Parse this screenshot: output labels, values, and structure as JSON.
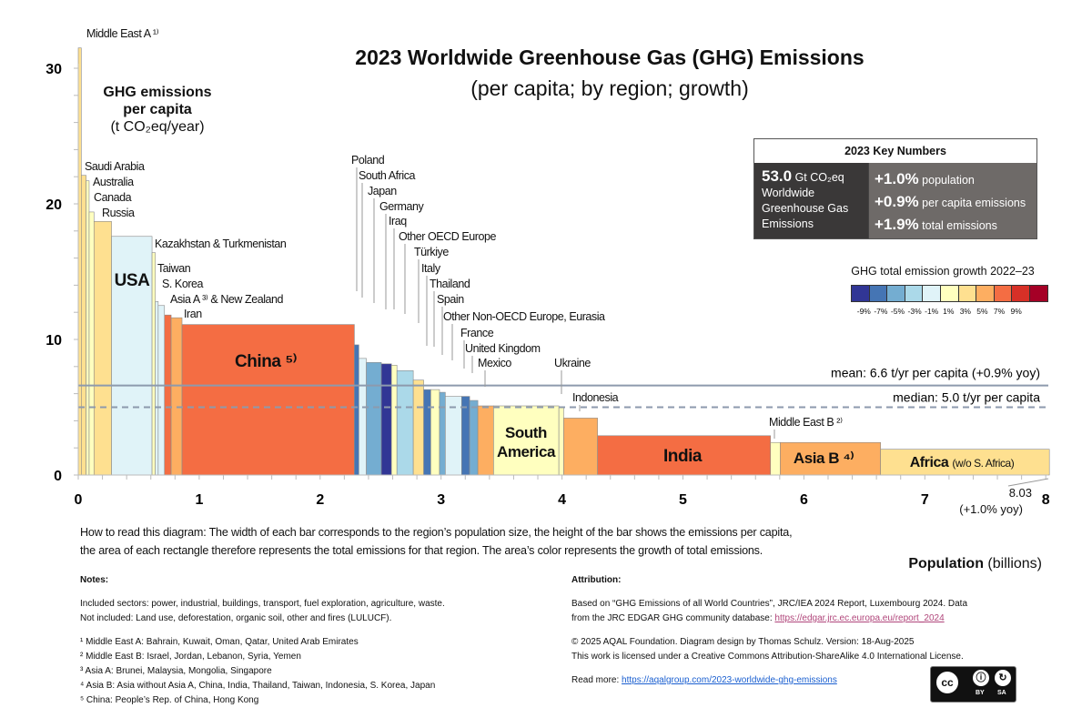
{
  "header": {
    "title": "2023 Worldwide Greenhouse Gas (GHG) Emissions",
    "subtitle": "(per capita; by region; growth)"
  },
  "key_numbers": {
    "title": "2023 Key Numbers",
    "total_value": "53.0",
    "total_unit": "Gt CO₂eq",
    "total_desc": "Worldwide Greenhouse Gas Emissions",
    "items": [
      {
        "value": "+1.0%",
        "label": "population"
      },
      {
        "value": "+0.9%",
        "label": "per capita emissions"
      },
      {
        "value": "+1.9%",
        "label": "total emissions"
      }
    ]
  },
  "legend": {
    "title": "GHG total emission growth 2022–23",
    "colors": [
      "#313695",
      "#4575b4",
      "#74add1",
      "#abd9e9",
      "#e0f3f8",
      "#ffffbf",
      "#fee090",
      "#fdae61",
      "#f46d43",
      "#d73027",
      "#a50026"
    ],
    "ticks": [
      "-9%",
      "-7%",
      "-5%",
      "-3%",
      "-1%",
      "1%",
      "3%",
      "5%",
      "7%",
      "9%"
    ]
  },
  "chart_data": {
    "type": "bar",
    "variant": "variable-width (Marimekko)",
    "title": "2023 Worldwide Greenhouse Gas (GHG) Emissions",
    "ylabel_lines": [
      "GHG emissions",
      "per capita",
      "(t CO₂eq/year)"
    ],
    "xlabel_bold": "Population",
    "xlabel_unit": "(billions)",
    "xlim": [
      0,
      8
    ],
    "ylim": [
      0,
      30
    ],
    "x_ticks": [
      "0",
      "1",
      "2",
      "3",
      "4",
      "5",
      "6",
      "7",
      "8"
    ],
    "y_ticks": [
      "0",
      "10",
      "20",
      "30"
    ],
    "total_population": "8.03",
    "population_growth": "(+1.0% yoy)",
    "mean": {
      "value": 6.6,
      "label": "mean: 6.6 t/yr per capita (+0.9% yoy)"
    },
    "median": {
      "value": 5.0,
      "label": "median: 5.0 t/yr per capita"
    },
    "bars": [
      {
        "label": "Middle East A ¹⁾",
        "population": 0.025,
        "per_capita": 31.5,
        "color": "#fee090"
      },
      {
        "label": "Saudi Arabia",
        "population": 0.04,
        "per_capita": 22.1,
        "color": "#fee090"
      },
      {
        "label": "Australia",
        "population": 0.025,
        "per_capita": 21.7,
        "color": "#ffffbf"
      },
      {
        "label": "Canada",
        "population": 0.04,
        "per_capita": 19.4,
        "color": "#ffffbf"
      },
      {
        "label": "Russia",
        "population": 0.145,
        "per_capita": 18.7,
        "color": "#fee090"
      },
      {
        "label": "USA",
        "population": 0.335,
        "per_capita": 17.6,
        "color": "#e0f3f8"
      },
      {
        "label": "Kazakhstan & Turkmenistan",
        "population": 0.027,
        "per_capita": 16.4,
        "color": "#ffffbf"
      },
      {
        "label": "Taiwan",
        "population": 0.024,
        "per_capita": 12.8,
        "color": "#e0f3f8"
      },
      {
        "label": "S. Korea",
        "population": 0.052,
        "per_capita": 12.5,
        "color": "#e0f3f8"
      },
      {
        "label": "Asia A ³⁾ & New Zealand",
        "population": 0.055,
        "per_capita": 11.8,
        "color": "#f46d43"
      },
      {
        "label": "Iran",
        "population": 0.09,
        "per_capita": 11.6,
        "color": "#fdae61"
      },
      {
        "label": "China ⁵⁾",
        "population": 1.425,
        "per_capita": 11.1,
        "color": "#f46d43"
      },
      {
        "label": "Poland",
        "population": 0.037,
        "per_capita": 9.6,
        "color": "#4575b4"
      },
      {
        "label": "South Africa",
        "population": 0.062,
        "per_capita": 8.6,
        "color": "#e0f3f8"
      },
      {
        "label": "Japan",
        "population": 0.124,
        "per_capita": 8.3,
        "color": "#74add1"
      },
      {
        "label": "Germany",
        "population": 0.084,
        "per_capita": 8.2,
        "color": "#313695"
      },
      {
        "label": "Iraq",
        "population": 0.045,
        "per_capita": 8.1,
        "color": "#ffffbf"
      },
      {
        "label": "Other OECD Europe",
        "population": 0.135,
        "per_capita": 7.7,
        "color": "#abd9e9"
      },
      {
        "label": "Türkiye",
        "population": 0.086,
        "per_capita": 7.0,
        "color": "#fee090"
      },
      {
        "label": "Italy",
        "population": 0.059,
        "per_capita": 6.3,
        "color": "#4575b4"
      },
      {
        "label": "Thailand",
        "population": 0.072,
        "per_capita": 6.3,
        "color": "#ffffbf"
      },
      {
        "label": "Spain",
        "population": 0.048,
        "per_capita": 6.1,
        "color": "#74add1"
      },
      {
        "label": "Other Non-OECD Europe, Eurasia",
        "population": 0.135,
        "per_capita": 5.8,
        "color": "#e0f3f8"
      },
      {
        "label": "France",
        "population": 0.066,
        "per_capita": 5.8,
        "color": "#4575b4"
      },
      {
        "label": "United Kingdom",
        "population": 0.068,
        "per_capita": 5.5,
        "color": "#74add1"
      },
      {
        "label": "Mexico",
        "population": 0.13,
        "per_capita": 5.1,
        "color": "#fdae61"
      },
      {
        "label": "South America",
        "population": 0.54,
        "per_capita": 5.1,
        "color": "#ffffbf"
      },
      {
        "label": "Ukraine",
        "population": 0.04,
        "per_capita": 5.0,
        "color": "#ffffbf"
      },
      {
        "label": "Indonesia",
        "population": 0.28,
        "per_capita": 4.2,
        "color": "#fdae61"
      },
      {
        "label": "India",
        "population": 1.43,
        "per_capita": 2.9,
        "color": "#f46d43"
      },
      {
        "label": "Middle East B ²⁾",
        "population": 0.08,
        "per_capita": 2.4,
        "color": "#ffffbf"
      },
      {
        "label": "Asia B ⁴⁾",
        "population": 0.83,
        "per_capita": 2.4,
        "color": "#fdae61"
      },
      {
        "label": "Africa",
        "label_note": "(w/o S. Africa)",
        "population": 1.396,
        "per_capita": 1.9,
        "color": "#fee090"
      }
    ]
  },
  "how_to_read": [
    "How to read this diagram: The width of each bar corresponds to the region’s population size, the height of the bar shows the emissions per capita,",
    "the area of each rectangle therefore represents the total emissions for that region. The area’s color represents the growth of total emissions."
  ],
  "notes": {
    "title": "Notes:",
    "included": "Included sectors: power, industrial, buildings, transport, fuel exploration, agriculture, waste.",
    "not_included": "Not included: Land use, deforestation, organic soil, other and fires (LULUCF).",
    "footnotes": [
      "¹ Middle East A: Bahrain, Kuwait, Oman, Qatar, United Arab Emirates",
      "² Middle East B: Israel, Jordan, Lebanon, Syria, Yemen",
      "³ Asia A: Brunei, Malaysia, Mongolia, Singapore",
      "⁴ Asia B: Asia without Asia A, China, India, Thailand, Taiwan, Indonesia, S. Korea, Japan",
      "⁵ China: People’s Rep. of China, Hong Kong"
    ]
  },
  "attribution": {
    "title": "Attribution:",
    "source_line1": "Based on “GHG Emissions of all World Countries”, JRC/IEA 2024 Report, Luxembourg 2024. Data",
    "source_line2": "from the JRC EDGAR GHG community database: ",
    "source_link": "https://edgar.jrc.ec.europa.eu/report_2024",
    "copyright": "© 2025 AQAL Foundation. Diagram design by Thomas Schulz. Version: 18-Aug-2025",
    "license": "This work is licensed under a Creative Commons Attribution-ShareAlike 4.0 International License.",
    "read_more_label": "Read more: ",
    "read_more_link": "https://aqalgroup.com/2023-worldwide-ghg-emissions",
    "cc_badge": {
      "cc": "cc",
      "by": "BY",
      "sa": "SA"
    }
  }
}
